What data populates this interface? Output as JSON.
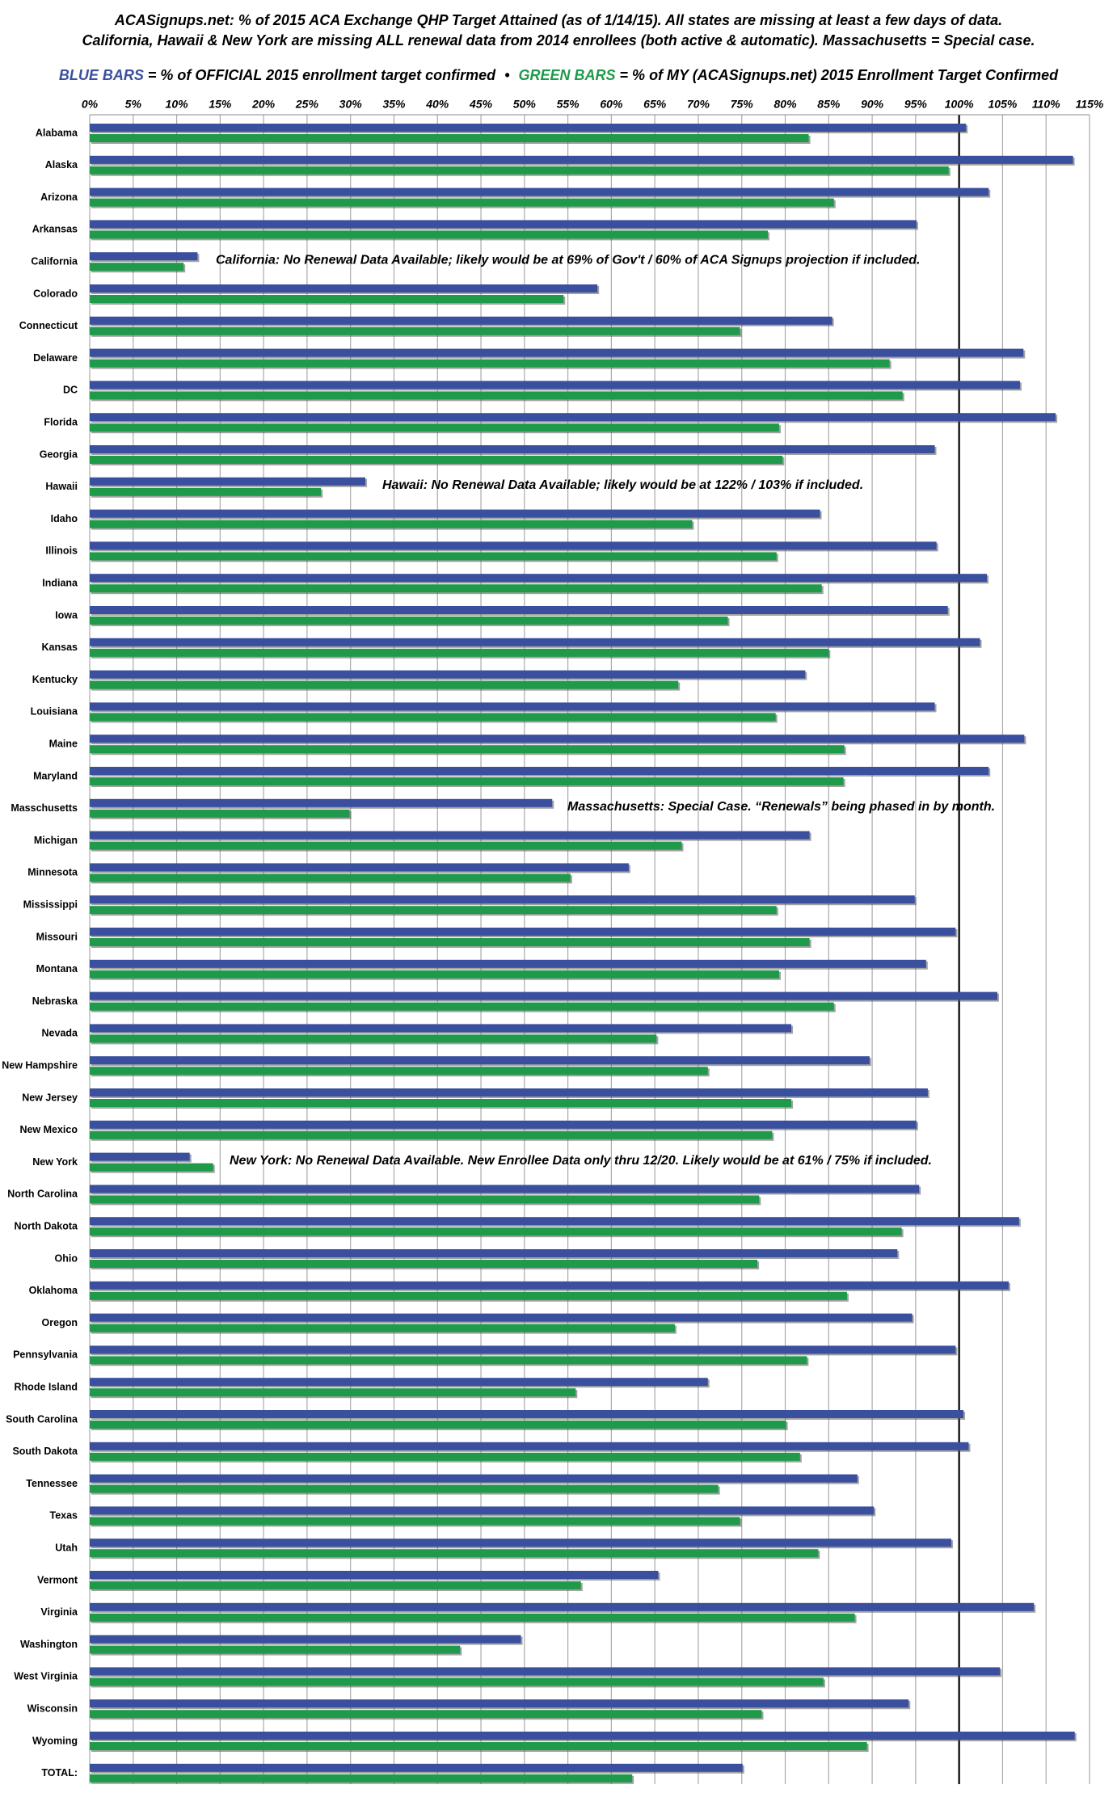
{
  "chart_data": {
    "type": "hbar",
    "title": [
      "ACASignups.net: % of 2015 ACA Exchange QHP Target Attained (as of 1/14/15). All states are missing at least a few days of data.",
      "California, Hawaii & New York are missing ALL renewal data from 2014 enrollees (both active & automatic). Massachusetts = Special case."
    ],
    "legend_separator": "•",
    "categories": [
      "Alabama",
      "Alaska",
      "Arizona",
      "Arkansas",
      "California",
      "Colorado",
      "Connecticut",
      "Delaware",
      "DC",
      "Florida",
      "Georgia",
      "Hawaii",
      "Idaho",
      "Illinois",
      "Indiana",
      "Iowa",
      "Kansas",
      "Kentucky",
      "Louisiana",
      "Maine",
      "Maryland",
      "Masschusetts",
      "Michigan",
      "Minnesota",
      "Mississippi",
      "Missouri",
      "Montana",
      "Nebraska",
      "Nevada",
      "New Hampshire",
      "New Jersey",
      "New Mexico",
      "New York",
      "North Carolina",
      "North Dakota",
      "Ohio",
      "Oklahoma",
      "Oregon",
      "Pennsylvania",
      "Rhode Island",
      "South Carolina",
      "South Dakota",
      "Tennessee",
      "Texas",
      "Utah",
      "Vermont",
      "Virginia",
      "Washington",
      "West Virginia",
      "Wisconsin",
      "Wyoming",
      "TOTAL:"
    ],
    "series": [
      {
        "name": "BLUE BARS",
        "description": "= % of OFFICIAL 2015 enrollment target confirmed",
        "color": "#3a4f9e",
        "values": [
          100.8,
          113.1,
          103.4,
          95.1,
          12.4,
          58.4,
          85.4,
          107.4,
          107.0,
          111.1,
          97.2,
          31.7,
          84.0,
          97.4,
          103.2,
          98.7,
          102.4,
          82.3,
          97.2,
          107.5,
          103.4,
          53.2,
          82.8,
          62.0,
          94.9,
          99.6,
          96.2,
          104.4,
          80.7,
          89.7,
          96.4,
          95.1,
          11.5,
          95.4,
          106.9,
          92.9,
          105.7,
          94.6,
          99.6,
          71.1,
          100.5,
          101.1,
          88.3,
          90.2,
          99.1,
          65.4,
          108.6,
          49.6,
          104.7,
          94.2,
          113.3,
          75.1
        ]
      },
      {
        "name": "GREEN BARS",
        "description": "= % of MY (ACASignups.net) 2015 Enrollment Target Confirmed",
        "color": "#1f9a4b",
        "values": [
          82.7,
          98.8,
          85.6,
          78.0,
          10.8,
          54.5,
          74.8,
          92.0,
          93.5,
          79.3,
          79.7,
          26.6,
          69.3,
          79.0,
          84.2,
          73.4,
          85.0,
          67.7,
          78.9,
          86.8,
          86.7,
          29.9,
          68.1,
          55.3,
          79.0,
          82.8,
          79.3,
          85.6,
          65.2,
          71.1,
          80.7,
          78.5,
          14.2,
          77.0,
          93.4,
          76.8,
          87.1,
          67.3,
          82.5,
          55.9,
          80.1,
          81.7,
          72.3,
          74.8,
          83.8,
          56.5,
          88.0,
          42.6,
          84.4,
          77.3,
          89.4,
          62.4
        ]
      }
    ],
    "annotations": [
      "California: No Renewal Data Available; likely would be at 69% of Gov't / 60% of ACA Signups projection if included.",
      "Hawaii: No Renewal Data Available; likely would be at 122% / 103% if included.",
      "Massachusetts: Special Case. “Renewals” being phased in by month.",
      "New York: No Renewal Data Available. New Enrollee Data only thru 12/20. Likely would be at 61% / 75% if included."
    ],
    "xlim": [
      0,
      115
    ],
    "xticks": [
      {
        "value": 0,
        "label": "0%"
      },
      {
        "value": 5,
        "label": "5%"
      },
      {
        "value": 10,
        "label": "10%"
      },
      {
        "value": 15,
        "label": "15%"
      },
      {
        "value": 20,
        "label": "20%"
      },
      {
        "value": 25,
        "label": "25%"
      },
      {
        "value": 30,
        "label": "30%"
      },
      {
        "value": 35,
        "label": "35%"
      },
      {
        "value": 40,
        "label": "40%"
      },
      {
        "value": 45,
        "label": "45%"
      },
      {
        "value": 50,
        "label": "50%"
      },
      {
        "value": 55,
        "label": "55%"
      },
      {
        "value": 60,
        "label": "60%"
      },
      {
        "value": 65,
        "label": "65%"
      },
      {
        "value": 70,
        "label": "70%"
      },
      {
        "value": 75,
        "label": "75%"
      },
      {
        "value": 80,
        "label": "80%"
      },
      {
        "value": 85,
        "label": "85%"
      },
      {
        "value": 90,
        "label": "90%"
      },
      {
        "value": 95,
        "label": "95%"
      },
      {
        "value": 100,
        "label": "100%"
      },
      {
        "value": 105,
        "label": "105%"
      },
      {
        "value": 110,
        "label": "110%"
      },
      {
        "value": 115,
        "label": "115%"
      }
    ],
    "grid": true,
    "target_line": 100
  }
}
